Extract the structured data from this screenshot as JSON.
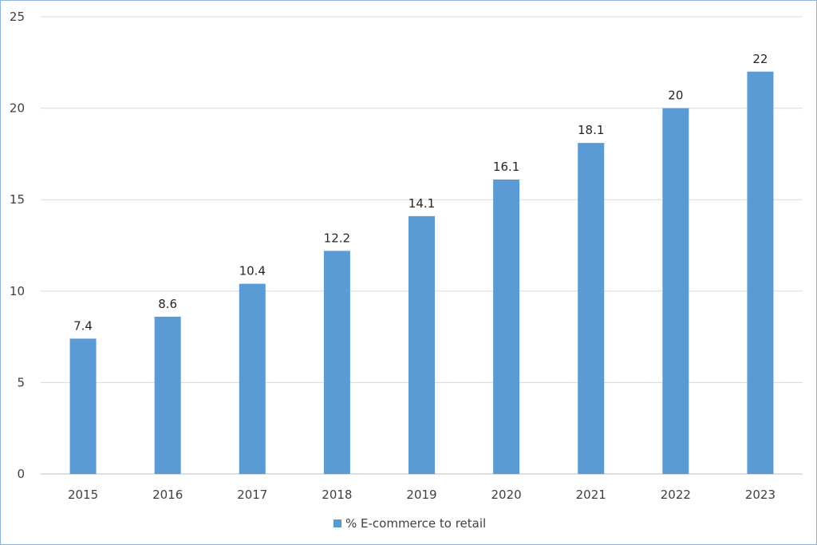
{
  "chart_data": {
    "type": "bar",
    "categories": [
      "2015",
      "2016",
      "2017",
      "2018",
      "2019",
      "2020",
      "2021",
      "2022",
      "2023"
    ],
    "series": [
      {
        "name": "% E-commerce to retail",
        "values": [
          7.4,
          8.6,
          10.4,
          12.2,
          14.1,
          16.1,
          18.1,
          20,
          22
        ],
        "labels": [
          "7.4",
          "8.6",
          "10.4",
          "12.2",
          "14.1",
          "16.1",
          "18.1",
          "20",
          "22"
        ]
      }
    ],
    "ylim": [
      0,
      25
    ],
    "yticks": [
      "0",
      "5",
      "10",
      "15",
      "20",
      "25"
    ],
    "grid": true,
    "legend": "bottom",
    "colors": {
      "bar": "#5b9bd5",
      "grid": "#d9d9d9",
      "axis": "#bfbfbf"
    }
  }
}
